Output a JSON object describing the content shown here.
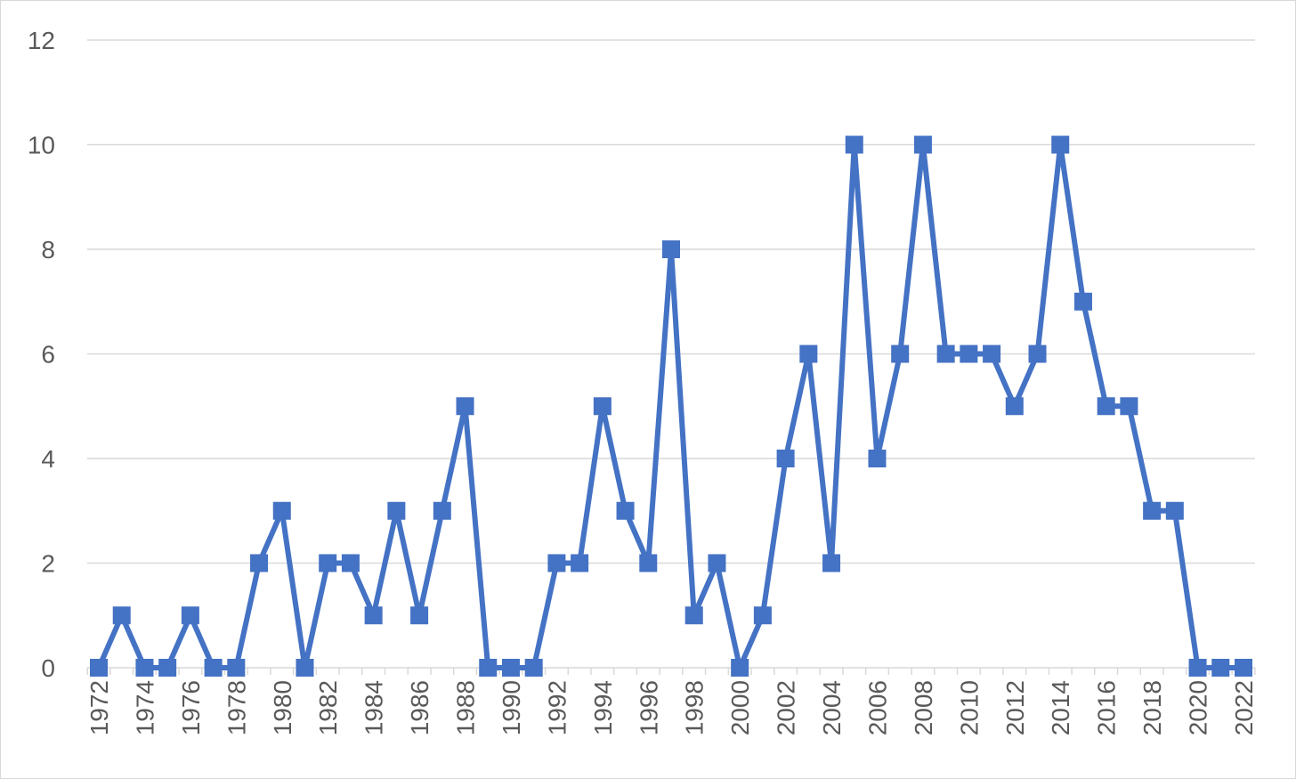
{
  "chart_data": {
    "type": "line",
    "title": "",
    "xlabel": "",
    "ylabel": "",
    "ylim": [
      0,
      12
    ],
    "yticks": [
      "0",
      "2",
      "4",
      "6",
      "8",
      "10",
      "12"
    ],
    "grid": "horizontal",
    "legend": "none",
    "x": [
      1972,
      1973,
      1974,
      1975,
      1976,
      1977,
      1978,
      1979,
      1980,
      1981,
      1982,
      1983,
      1984,
      1985,
      1986,
      1987,
      1988,
      1989,
      1990,
      1991,
      1992,
      1993,
      1994,
      1995,
      1996,
      1997,
      1998,
      1999,
      2000,
      2001,
      2002,
      2003,
      2004,
      2005,
      2006,
      2007,
      2008,
      2009,
      2010,
      2011,
      2012,
      2013,
      2014,
      2015,
      2016,
      2017,
      2018,
      2019,
      2020,
      2021,
      2022
    ],
    "xticks": [
      "1972",
      "1974",
      "1976",
      "1978",
      "1980",
      "1982",
      "1984",
      "1986",
      "1988",
      "1990",
      "1992",
      "1994",
      "1996",
      "1998",
      "2000",
      "2002",
      "2004",
      "2006",
      "2008",
      "2010",
      "2012",
      "2014",
      "2016",
      "2018",
      "2020",
      "2022"
    ],
    "series": [
      {
        "color": "#4472c4",
        "marker": "square",
        "values": [
          0,
          1,
          0,
          0,
          1,
          0,
          0,
          2,
          3,
          0,
          2,
          2,
          1,
          3,
          1,
          3,
          5,
          0,
          0,
          0,
          2,
          2,
          5,
          3,
          2,
          8,
          1,
          2,
          0,
          1,
          4,
          6,
          2,
          10,
          4,
          6,
          10,
          6,
          6,
          6,
          5,
          6,
          10,
          7,
          5,
          5,
          3,
          3,
          0,
          0,
          0
        ]
      }
    ]
  }
}
